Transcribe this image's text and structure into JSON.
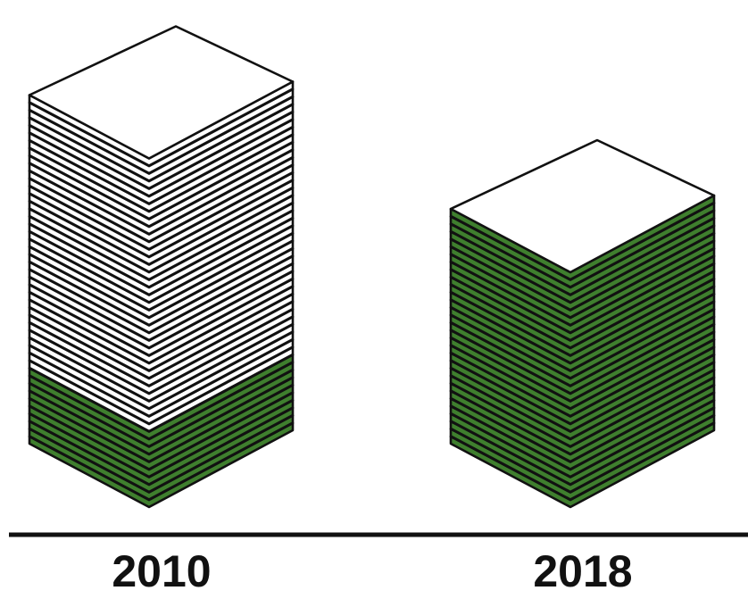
{
  "chart_data": {
    "type": "pictograph",
    "categories": [
      "2010",
      "2018"
    ],
    "series": [
      {
        "color": "#3f7f2e",
        "values": [
          10,
          31
        ]
      },
      {
        "color": "#ffffff",
        "values": [
          36,
          0
        ]
      }
    ]
  }
}
